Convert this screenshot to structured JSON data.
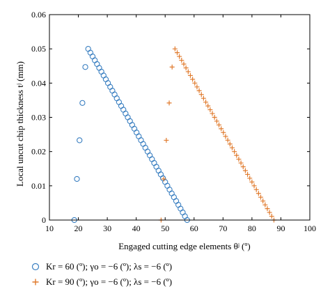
{
  "chart_data": {
    "type": "scatter",
    "xlabel": "Engaged cutting edge elements θʲ (º)",
    "ylabel": "Local uncut chip thickness tʲ (mm)",
    "xlim": [
      10,
      100
    ],
    "ylim": [
      0,
      0.06
    ],
    "x_ticks": [
      "10",
      "20",
      "30",
      "40",
      "50",
      "60",
      "70",
      "80",
      "90",
      "100"
    ],
    "y_ticks": [
      "0",
      "0.01",
      "0.02",
      "0.03",
      "0.04",
      "0.05",
      "0.06"
    ],
    "grid": false,
    "legend_position": "below",
    "series": [
      {
        "name": "Kr = 60 (º); γo = −6 (º); λs = −6 (º)",
        "marker": "circle",
        "color": "#3a7fc1",
        "points": [
          [
            18.6,
            0.0
          ],
          [
            19.5,
            0.012
          ],
          [
            20.4,
            0.0233
          ],
          [
            21.4,
            0.0342
          ],
          [
            22.4,
            0.0447
          ],
          [
            23.4,
            0.05
          ],
          [
            24.16,
            0.04889
          ],
          [
            24.92,
            0.04778
          ],
          [
            25.68,
            0.04667
          ],
          [
            26.44,
            0.04556
          ],
          [
            27.2,
            0.04444
          ],
          [
            27.96,
            0.04333
          ],
          [
            28.72,
            0.04222
          ],
          [
            29.48,
            0.04111
          ],
          [
            30.24,
            0.04
          ],
          [
            31.0,
            0.03889
          ],
          [
            31.76,
            0.03778
          ],
          [
            32.52,
            0.03667
          ],
          [
            33.28,
            0.03556
          ],
          [
            34.04,
            0.03444
          ],
          [
            34.8,
            0.03333
          ],
          [
            35.56,
            0.03222
          ],
          [
            36.32,
            0.03111
          ],
          [
            37.08,
            0.03
          ],
          [
            37.84,
            0.02889
          ],
          [
            38.6,
            0.02778
          ],
          [
            39.36,
            0.02667
          ],
          [
            40.12,
            0.02556
          ],
          [
            40.88,
            0.02444
          ],
          [
            41.64,
            0.02333
          ],
          [
            42.4,
            0.02222
          ],
          [
            43.16,
            0.02111
          ],
          [
            43.92,
            0.02
          ],
          [
            44.68,
            0.01889
          ],
          [
            45.44,
            0.01778
          ],
          [
            46.2,
            0.01667
          ],
          [
            46.96,
            0.01556
          ],
          [
            47.72,
            0.01444
          ],
          [
            48.48,
            0.01333
          ],
          [
            49.24,
            0.01222
          ],
          [
            50.0,
            0.01111
          ],
          [
            50.76,
            0.01
          ],
          [
            51.52,
            0.00889
          ],
          [
            52.28,
            0.00778
          ],
          [
            53.04,
            0.00667
          ],
          [
            53.8,
            0.00556
          ],
          [
            54.56,
            0.00444
          ],
          [
            55.32,
            0.00333
          ],
          [
            56.08,
            0.00222
          ],
          [
            56.84,
            0.00111
          ],
          [
            57.6,
            0.0
          ]
        ]
      },
      {
        "name": "Kr = 90 (º); γo = −6 (º); λs = −6 (º)",
        "marker": "plus",
        "color": "#e07a2c",
        "points": [
          [
            48.6,
            0.0
          ],
          [
            49.5,
            0.012
          ],
          [
            50.4,
            0.0233
          ],
          [
            51.4,
            0.0342
          ],
          [
            52.4,
            0.0447
          ],
          [
            53.4,
            0.05
          ],
          [
            54.16,
            0.04889
          ],
          [
            54.92,
            0.04778
          ],
          [
            55.68,
            0.04667
          ],
          [
            56.44,
            0.04556
          ],
          [
            57.2,
            0.04444
          ],
          [
            57.96,
            0.04333
          ],
          [
            58.72,
            0.04222
          ],
          [
            59.48,
            0.04111
          ],
          [
            60.24,
            0.04
          ],
          [
            61.0,
            0.03889
          ],
          [
            61.76,
            0.03778
          ],
          [
            62.52,
            0.03667
          ],
          [
            63.28,
            0.03556
          ],
          [
            64.04,
            0.03444
          ],
          [
            64.8,
            0.03333
          ],
          [
            65.56,
            0.03222
          ],
          [
            66.32,
            0.03111
          ],
          [
            67.08,
            0.03
          ],
          [
            67.84,
            0.02889
          ],
          [
            68.6,
            0.02778
          ],
          [
            69.36,
            0.02667
          ],
          [
            70.12,
            0.02556
          ],
          [
            70.88,
            0.02444
          ],
          [
            71.64,
            0.02333
          ],
          [
            72.4,
            0.02222
          ],
          [
            73.16,
            0.02111
          ],
          [
            73.92,
            0.02
          ],
          [
            74.68,
            0.01889
          ],
          [
            75.44,
            0.01778
          ],
          [
            76.2,
            0.01667
          ],
          [
            76.96,
            0.01556
          ],
          [
            77.72,
            0.01444
          ],
          [
            78.48,
            0.01333
          ],
          [
            79.24,
            0.01222
          ],
          [
            80.0,
            0.01111
          ],
          [
            80.76,
            0.01
          ],
          [
            81.52,
            0.00889
          ],
          [
            82.28,
            0.00778
          ],
          [
            83.04,
            0.00667
          ],
          [
            83.8,
            0.00556
          ],
          [
            84.56,
            0.00444
          ],
          [
            85.32,
            0.00333
          ],
          [
            86.08,
            0.00222
          ],
          [
            86.84,
            0.00111
          ],
          [
            87.6,
            0.0
          ]
        ]
      }
    ]
  }
}
